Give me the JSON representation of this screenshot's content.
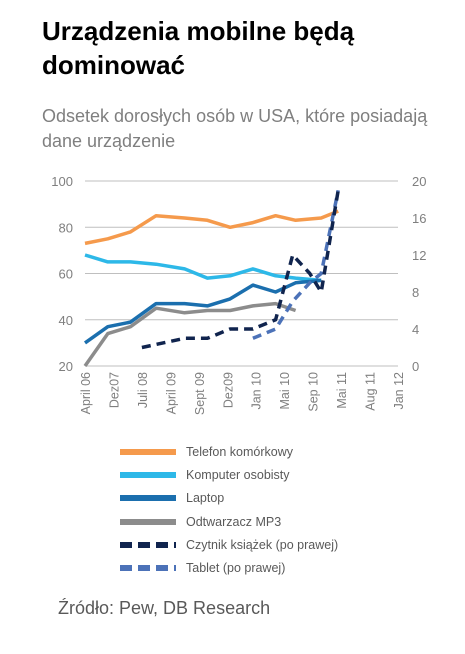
{
  "title": "Urządzenia mobilne będą dominować",
  "subtitle": "Odsetek dorosłych osób w USA, które posiadają dane urządzenie",
  "source": "Źródło: Pew, DB Research",
  "chart_data": {
    "type": "line",
    "categories": [
      "April 06",
      "Dez07",
      "Juli 08",
      "April 09",
      "Sept 09",
      "Dez09",
      "Jan 10",
      "Mai 10",
      "Sep 10",
      "Mai 11",
      "Aug 11",
      "Jan 12"
    ],
    "y_left": {
      "min": 20,
      "max": 100,
      "ticks": [
        20,
        40,
        60,
        80,
        100
      ]
    },
    "y_right": {
      "min": 0,
      "max": 20,
      "ticks": [
        0,
        4,
        8,
        12,
        16,
        20
      ]
    },
    "grid": true,
    "legend_position": "bottom",
    "series": [
      {
        "name": "Telefon komórkowy",
        "axis": "left",
        "style": "solid",
        "color": "#f59a4c",
        "points": [
          [
            0,
            73
          ],
          [
            0.8,
            75
          ],
          [
            1.6,
            78
          ],
          [
            2.5,
            85
          ],
          [
            3.5,
            84
          ],
          [
            4.3,
            83
          ],
          [
            5.1,
            80
          ],
          [
            5.9,
            82
          ],
          [
            6.7,
            85
          ],
          [
            7.4,
            83
          ],
          [
            8.3,
            84
          ],
          [
            8.9,
            87
          ]
        ]
      },
      {
        "name": "Komputer osobisty",
        "axis": "left",
        "style": "solid",
        "color": "#2db8e8",
        "points": [
          [
            0,
            68
          ],
          [
            0.8,
            65
          ],
          [
            1.6,
            65
          ],
          [
            2.5,
            64
          ],
          [
            3.5,
            62
          ],
          [
            4.3,
            58
          ],
          [
            5.1,
            59
          ],
          [
            5.9,
            62
          ],
          [
            6.7,
            59
          ],
          [
            7.4,
            58
          ],
          [
            8.3,
            57
          ]
        ]
      },
      {
        "name": "Laptop",
        "axis": "left",
        "style": "solid",
        "color": "#1b6fae",
        "points": [
          [
            0,
            30
          ],
          [
            0.8,
            37
          ],
          [
            1.6,
            39
          ],
          [
            2.5,
            47
          ],
          [
            3.5,
            47
          ],
          [
            4.3,
            46
          ],
          [
            5.1,
            49
          ],
          [
            5.9,
            55
          ],
          [
            6.7,
            52
          ],
          [
            7.4,
            56
          ],
          [
            8.3,
            57
          ]
        ]
      },
      {
        "name": "Odtwarzacz MP3",
        "axis": "left",
        "style": "solid",
        "color": "#8c8c8c",
        "points": [
          [
            0,
            20
          ],
          [
            0.8,
            34
          ],
          [
            1.6,
            37
          ],
          [
            2.5,
            45
          ],
          [
            3.5,
            43
          ],
          [
            4.3,
            44
          ],
          [
            5.1,
            44
          ],
          [
            5.9,
            46
          ],
          [
            6.7,
            47
          ],
          [
            7.4,
            44
          ]
        ]
      },
      {
        "name": "Czytnik książek (po prawej)",
        "axis": "right",
        "style": "dashed",
        "color": "#10244e",
        "points": [
          [
            2.0,
            2
          ],
          [
            3.5,
            3
          ],
          [
            4.3,
            3
          ],
          [
            5.1,
            4
          ],
          [
            5.9,
            4
          ],
          [
            6.7,
            5
          ],
          [
            7.3,
            12
          ],
          [
            7.9,
            10
          ],
          [
            8.3,
            8
          ],
          [
            8.9,
            19
          ]
        ]
      },
      {
        "name": "Tablet (po prawej)",
        "axis": "right",
        "style": "dashed",
        "color": "#4c72b8",
        "points": [
          [
            5.9,
            3
          ],
          [
            6.7,
            4
          ],
          [
            7.3,
            7
          ],
          [
            7.9,
            9
          ],
          [
            8.3,
            10
          ],
          [
            8.9,
            19
          ]
        ]
      }
    ]
  }
}
